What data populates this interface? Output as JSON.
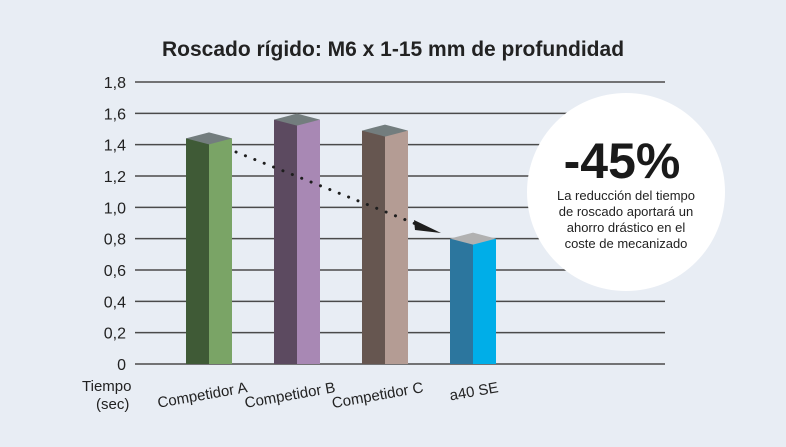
{
  "chart_data": {
    "type": "bar",
    "title": "Roscado rígido: M6 x 1-15 mm de profundidad",
    "xlabel": "",
    "ylabel": "Tiempo (sec)",
    "ylabel_lines": [
      "Tiempo",
      "(sec)"
    ],
    "ylim": [
      0,
      1.8
    ],
    "yticks": [
      "0",
      "0,2",
      "0,4",
      "0,6",
      "0,8",
      "1,0",
      "1,2",
      "1,4",
      "1,6",
      "1,8"
    ],
    "grid": true,
    "categories": [
      "Competidor A",
      "Competidor B",
      "Competidor C",
      "a40 SE"
    ],
    "values": [
      1.44,
      1.56,
      1.49,
      0.8
    ],
    "colors": [
      {
        "dark": "#3f5a36",
        "light": "#7aa466",
        "top": "#737d7e"
      },
      {
        "dark": "#5c4a60",
        "light": "#a888b4",
        "top": "#737d7e"
      },
      {
        "dark": "#665650",
        "light": "#b49c94",
        "top": "#737d7e"
      },
      {
        "dark": "#2c769e",
        "light": "#00aee8",
        "top": "#b1b1b1"
      }
    ]
  },
  "callout": {
    "percent": "-45%",
    "lines": [
      "La reducción del tiempo",
      "de roscado aportará un",
      "ahorro drástico en el",
      "coste de mecanizado"
    ]
  }
}
